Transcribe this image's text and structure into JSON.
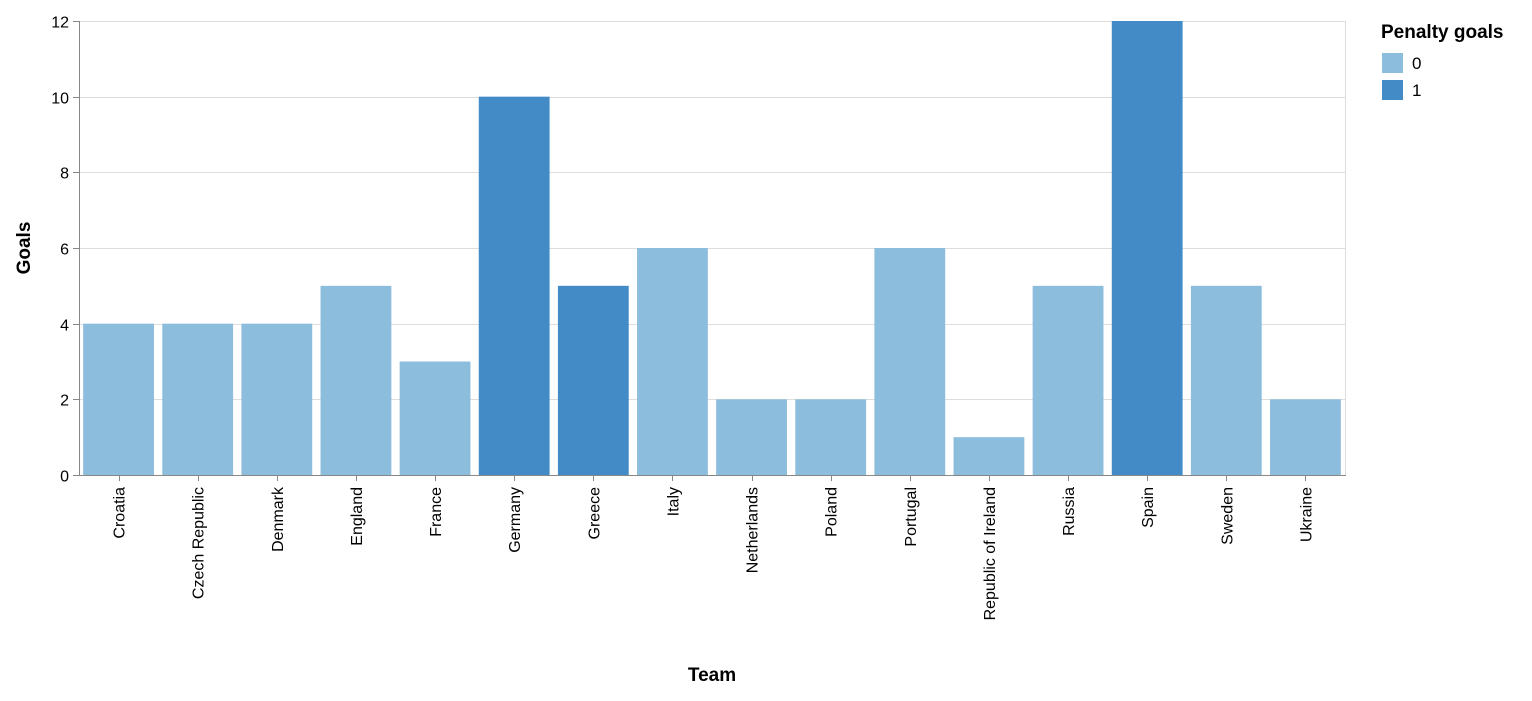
{
  "chart_data": {
    "type": "bar",
    "xlabel": "Team",
    "ylabel": "Goals",
    "ylim": [
      0,
      12
    ],
    "yticks": [
      0,
      2,
      4,
      6,
      8,
      10,
      12
    ],
    "grid": true,
    "categories": [
      "Croatia",
      "Czech Republic",
      "Denmark",
      "England",
      "France",
      "Germany",
      "Greece",
      "Italy",
      "Netherlands",
      "Poland",
      "Portugal",
      "Republic of Ireland",
      "Russia",
      "Spain",
      "Sweden",
      "Ukraine"
    ],
    "values": [
      4,
      4,
      4,
      5,
      3,
      10,
      5,
      6,
      2,
      2,
      6,
      1,
      5,
      12,
      5,
      2
    ],
    "penalty_goals": [
      0,
      0,
      0,
      0,
      0,
      1,
      1,
      0,
      0,
      0,
      0,
      0,
      0,
      1,
      0,
      0
    ],
    "legend": {
      "title": "Penalty goals",
      "placement": "top-right",
      "items": [
        {
          "label": "0",
          "color": "#8dbddc"
        },
        {
          "label": "1",
          "color": "#428bc6"
        }
      ]
    }
  }
}
